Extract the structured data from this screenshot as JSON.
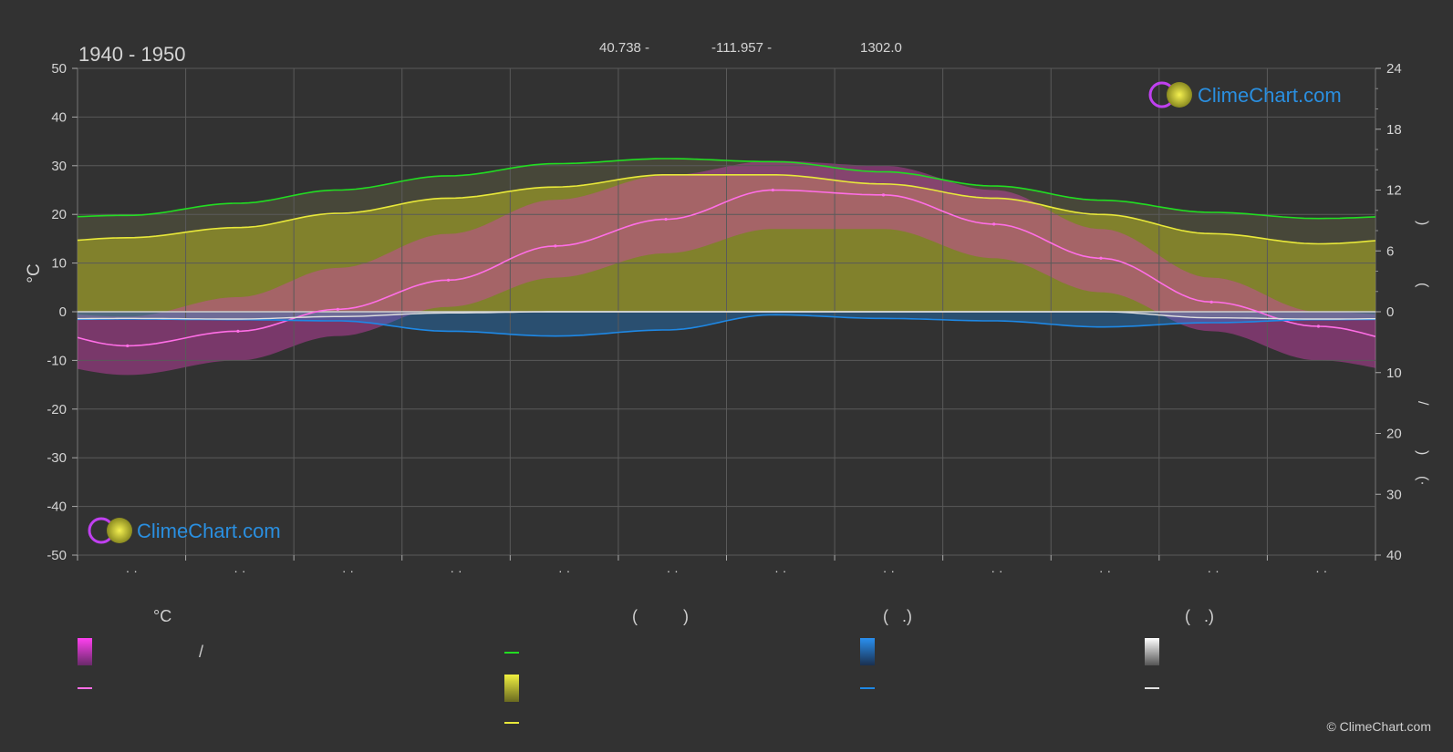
{
  "header": {
    "period": "1940 - 1950",
    "latitude": "40.738 -",
    "longitude": "-111.957 -",
    "elevation": "1302.0"
  },
  "axes": {
    "left_unit": "°C",
    "left_ticks": [
      "50",
      "40",
      "30",
      "20",
      "10",
      "0",
      "-10",
      "-20",
      "-30",
      "-40",
      "-50"
    ],
    "right_top_ticks": [
      "24",
      "18",
      "12",
      "6",
      "0"
    ],
    "right_bottom_ticks": [
      "10",
      "20",
      "30",
      "40"
    ],
    "right_label_fragments": [
      ")",
      "(",
      "/",
      ")",
      "(·"
    ],
    "month_ticks": [
      "· ·",
      "· ·",
      "· ·",
      "· ·",
      "· ·",
      "· ·",
      "· ·",
      "· ·",
      "· ·",
      "· ·",
      "· ·",
      "· ·"
    ]
  },
  "legend": {
    "headings": [
      "°C",
      "(          )",
      "(   .)",
      "(   .)"
    ],
    "slash": "/"
  },
  "brand": {
    "logo_text": "ClimeChart.com",
    "copyright": "© ClimeChart.com"
  },
  "colors": {
    "background": "#323232",
    "grid": "#5a5a5a",
    "daylight": "#22dd22",
    "sunshine": "#e8e83a",
    "sunshine_fill": "#8c8c2a",
    "temp_line": "#ff6ee6",
    "temp_fill": "#d040b0",
    "precip": "#1e88e5",
    "snow": "#e0e0e0",
    "brand_blue": "#2a8fe0"
  },
  "chart_data": {
    "type": "line",
    "x": [
      15,
      46,
      74,
      105,
      135,
      166,
      196,
      227,
      258,
      288,
      319,
      349
    ],
    "x_unit": "day of year",
    "xlim": [
      1,
      365
    ],
    "ylim_left": [
      -50,
      50
    ],
    "ylim_right_hours": [
      0,
      24
    ],
    "ylim_right_mm": [
      0,
      40
    ],
    "grid": true,
    "series": [
      {
        "key": "daylight",
        "axis": "hours",
        "values": [
          9.5,
          10.7,
          12.0,
          13.4,
          14.6,
          15.1,
          14.8,
          13.8,
          12.4,
          11.0,
          9.8,
          9.2
        ]
      },
      {
        "key": "sunshine",
        "axis": "hours",
        "values": [
          7.3,
          8.3,
          9.7,
          11.2,
          12.3,
          13.5,
          13.5,
          12.6,
          11.2,
          9.6,
          7.7,
          6.7
        ]
      },
      {
        "key": "temp_mean",
        "axis": "°C",
        "values": [
          -7,
          -4,
          0.5,
          6.5,
          13.5,
          19,
          25,
          24,
          18,
          11,
          2,
          -3
        ]
      },
      {
        "key": "temp_max_avg",
        "axis": "°C",
        "values": [
          -1,
          3,
          9,
          16,
          23,
          28,
          31,
          30,
          25,
          17,
          7,
          0
        ]
      },
      {
        "key": "temp_min_avg",
        "axis": "°C",
        "values": [
          -13,
          -10,
          -5,
          1,
          7,
          12,
          17,
          17,
          11,
          4,
          -4,
          -10
        ]
      },
      {
        "key": "precip",
        "axis": "mm",
        "values": [
          1.2,
          1.3,
          1.5,
          3.2,
          4.0,
          3.0,
          0.5,
          1.1,
          1.5,
          2.5,
          1.8,
          1.3
        ]
      },
      {
        "key": "snow",
        "axis": "mm",
        "values": [
          1.1,
          1.2,
          0.8,
          0.2,
          0,
          0,
          0,
          0,
          0,
          0,
          1.0,
          1.2
        ]
      }
    ]
  }
}
